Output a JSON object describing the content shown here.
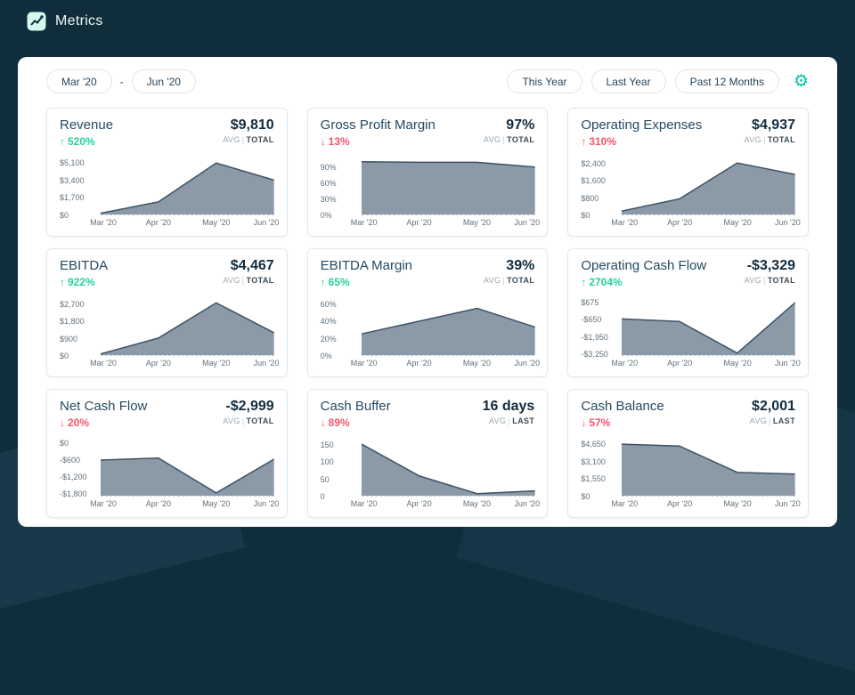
{
  "header": {
    "app_title": "Metrics"
  },
  "icons": {
    "logo": "chart-line-icon",
    "settings": "gear-icon",
    "increase": "arrow-up-icon",
    "decrease": "arrow-down-icon"
  },
  "labels": {
    "agg_separator": "|"
  },
  "controls": {
    "date_from": "Mar '20",
    "date_separator": "-",
    "date_to": "Jun '20",
    "filters": [
      "This Year",
      "Last Year",
      "Past 12 Months"
    ]
  },
  "colors": {
    "header_bg": "#0f2d3b",
    "accent": "#00c3a9",
    "positive": "#25d19e",
    "negative": "#f4566a",
    "chart_fill": "#8c9aa8",
    "chart_line": "#3c5366"
  },
  "cards": [
    {
      "title": "Revenue",
      "value": "$9,810",
      "agg": {
        "left": "AVG",
        "right": "TOTAL"
      },
      "change": {
        "direction": "up",
        "label": "520%",
        "color": "#25d19e"
      },
      "chart_data": {
        "type": "area",
        "x": [
          "Mar '20",
          "Apr '20",
          "May '20",
          "Jun '20"
        ],
        "values": [
          120,
          1250,
          5120,
          3420
        ],
        "ymin": 0,
        "ymax": 5400,
        "yticks": [
          {
            "label": "$5,100",
            "value": 5100
          },
          {
            "label": "$3,400",
            "value": 3400
          },
          {
            "label": "$1,700",
            "value": 1700
          },
          {
            "label": "$0",
            "value": 0
          }
        ]
      }
    },
    {
      "title": "Gross Profit Margin",
      "value": "97%",
      "agg": {
        "left": "AVG",
        "right": "TOTAL"
      },
      "change": {
        "direction": "down",
        "label": "13%",
        "color": "#f4566a"
      },
      "chart_data": {
        "type": "area",
        "x": [
          "Mar '20",
          "Apr '20",
          "May '20",
          "Jun '20"
        ],
        "values": [
          100,
          99,
          99,
          90
        ],
        "ymin": 0,
        "ymax": 103,
        "yticks": [
          {
            "label": "90%",
            "value": 90
          },
          {
            "label": "60%",
            "value": 60
          },
          {
            "label": "30%",
            "value": 30
          },
          {
            "label": "0%",
            "value": 0
          }
        ]
      }
    },
    {
      "title": "Operating Expenses",
      "value": "$4,937",
      "agg": {
        "left": "AVG",
        "right": "TOTAL"
      },
      "change": {
        "direction": "up",
        "label": "310%",
        "color": "#f4566a"
      },
      "chart_data": {
        "type": "area",
        "x": [
          "Mar '20",
          "Apr '20",
          "May '20",
          "Jun '20"
        ],
        "values": [
          160,
          730,
          2420,
          1880
        ],
        "ymin": 0,
        "ymax": 2550,
        "yticks": [
          {
            "label": "$2,400",
            "value": 2400
          },
          {
            "label": "$1,600",
            "value": 1600
          },
          {
            "label": "$800",
            "value": 800
          },
          {
            "label": "$0",
            "value": 0
          }
        ]
      }
    },
    {
      "title": "EBITDA",
      "value": "$4,467",
      "agg": {
        "left": "AVG",
        "right": "TOTAL"
      },
      "change": {
        "direction": "up",
        "label": "922%",
        "color": "#25d19e"
      },
      "chart_data": {
        "type": "area",
        "x": [
          "Mar '20",
          "Apr '20",
          "May '20",
          "Jun '20"
        ],
        "values": [
          60,
          900,
          2760,
          1180
        ],
        "ymin": 0,
        "ymax": 2870,
        "yticks": [
          {
            "label": "$2,700",
            "value": 2700
          },
          {
            "label": "$1,800",
            "value": 1800
          },
          {
            "label": "$900",
            "value": 900
          },
          {
            "label": "$0",
            "value": 0
          }
        ]
      }
    },
    {
      "title": "EBITDA Margin",
      "value": "39%",
      "agg": {
        "left": "AVG",
        "right": "TOTAL"
      },
      "change": {
        "direction": "up",
        "label": "65%",
        "color": "#25d19e"
      },
      "chart_data": {
        "type": "area",
        "x": [
          "Mar '20",
          "Apr '20",
          "May '20",
          "Jun '20"
        ],
        "values": [
          25,
          40,
          55,
          33
        ],
        "ymin": 0,
        "ymax": 64,
        "yticks": [
          {
            "label": "60%",
            "value": 60
          },
          {
            "label": "40%",
            "value": 40
          },
          {
            "label": "20%",
            "value": 20
          },
          {
            "label": "0%",
            "value": 0
          }
        ]
      }
    },
    {
      "title": "Operating Cash Flow",
      "value": "-$3,329",
      "agg": {
        "left": "AVG",
        "right": "TOTAL"
      },
      "change": {
        "direction": "up",
        "label": "2704%",
        "color": "#25d19e"
      },
      "chart_data": {
        "type": "area",
        "x": [
          "Mar '20",
          "Apr '20",
          "May '20",
          "Jun '20"
        ],
        "values": [
          -600,
          -800,
          -3250,
          650
        ],
        "ymin": -3400,
        "ymax": 800,
        "yticks": [
          {
            "label": "$675",
            "value": 675
          },
          {
            "label": "-$650",
            "value": -650
          },
          {
            "label": "-$1,950",
            "value": -1950
          },
          {
            "label": "-$3,250",
            "value": -3250
          }
        ]
      }
    },
    {
      "title": "Net Cash Flow",
      "value": "-$2,999",
      "agg": {
        "left": "AVG",
        "right": "TOTAL"
      },
      "change": {
        "direction": "down",
        "label": "20%",
        "color": "#f4566a"
      },
      "chart_data": {
        "type": "area",
        "x": [
          "Mar '20",
          "Apr '20",
          "May '20",
          "Jun '20"
        ],
        "values": [
          -600,
          -530,
          -1800,
          -570
        ],
        "ymin": -1900,
        "ymax": 80,
        "yticks": [
          {
            "label": "$0",
            "value": 0
          },
          {
            "label": "-$600",
            "value": -600
          },
          {
            "label": "-$1,200",
            "value": -1200
          },
          {
            "label": "-$1,800",
            "value": -1800
          }
        ]
      }
    },
    {
      "title": "Cash Buffer",
      "value": "16 days",
      "agg": {
        "left": "AVG",
        "right": "LAST"
      },
      "change": {
        "direction": "down",
        "label": "89%",
        "color": "#f4566a"
      },
      "chart_data": {
        "type": "area",
        "x": [
          "Mar '20",
          "Apr '20",
          "May '20",
          "Jun '20"
        ],
        "values": [
          152,
          58,
          6,
          14
        ],
        "ymin": 0,
        "ymax": 160,
        "yticks": [
          {
            "label": "150",
            "value": 150
          },
          {
            "label": "100",
            "value": 100
          },
          {
            "label": "50",
            "value": 50
          },
          {
            "label": "0",
            "value": 0
          }
        ]
      }
    },
    {
      "title": "Cash Balance",
      "value": "$2,001",
      "agg": {
        "left": "AVG",
        "right": "LAST"
      },
      "change": {
        "direction": "down",
        "label": "57%",
        "color": "#f4566a"
      },
      "chart_data": {
        "type": "area",
        "x": [
          "Mar '20",
          "Apr '20",
          "May '20",
          "Jun '20"
        ],
        "values": [
          4650,
          4480,
          2100,
          1950
        ],
        "ymin": 0,
        "ymax": 4900,
        "yticks": [
          {
            "label": "$4,650",
            "value": 4650
          },
          {
            "label": "$3,100",
            "value": 3100
          },
          {
            "label": "$1,550",
            "value": 1550
          },
          {
            "label": "$0",
            "value": 0
          }
        ]
      }
    }
  ]
}
